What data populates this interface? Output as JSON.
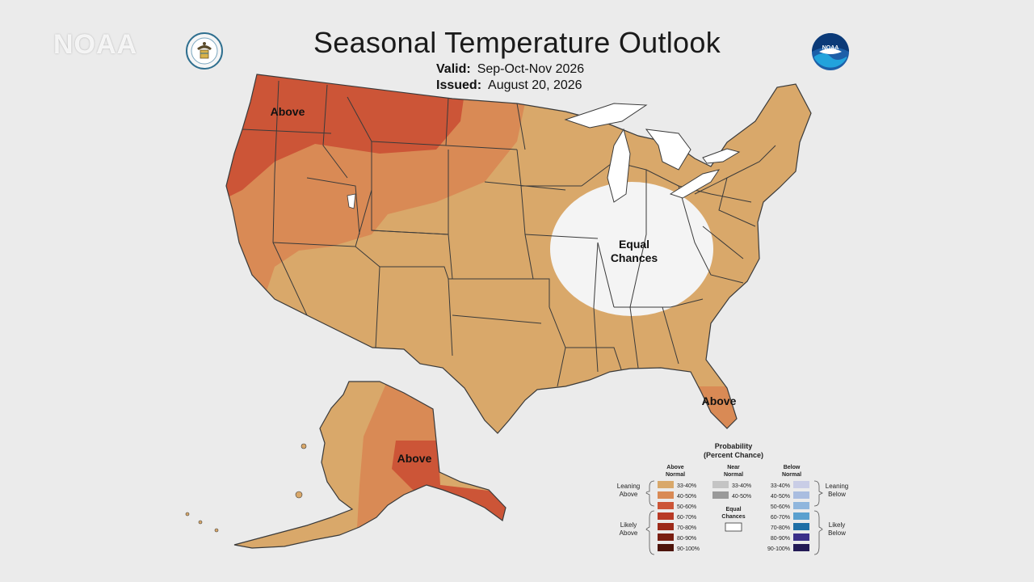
{
  "watermark": "NOAA",
  "title": "Seasonal Temperature Outlook",
  "valid": {
    "label": "Valid:",
    "value": "Sep-Oct-Nov 2026"
  },
  "issued": {
    "label": "Issued:",
    "value": "August 20, 2026"
  },
  "map_labels": {
    "above_northwest": "Above",
    "equal_chances": "Equal Chances",
    "above_florida": "Above",
    "above_alaska": "Above"
  },
  "colors": {
    "background": "#ebebeb",
    "above_33_40": "#d9a86a",
    "above_40_50": "#d98a55",
    "above_50_60": "#cc5537",
    "equal_chances": "#f4f4f4",
    "state_lines": "#3a3a3a"
  },
  "legend": {
    "title": "Probability",
    "subtitle": "(Percent Chance)",
    "above_header": [
      "Above",
      "Normal"
    ],
    "near_header": [
      "Near",
      "Normal"
    ],
    "below_header": [
      "Below",
      "Normal"
    ],
    "leaning_above": [
      "Leaning",
      "Above"
    ],
    "likely_above": [
      "Likely",
      "Above"
    ],
    "leaning_below": [
      "Leaning",
      "Below"
    ],
    "likely_below": [
      "Likely",
      "Below"
    ],
    "equal_chances": [
      "Equal",
      "Chances"
    ],
    "above_bins": [
      {
        "label": "33-40%",
        "color": "#d9a86a"
      },
      {
        "label": "40-50%",
        "color": "#d98a55"
      },
      {
        "label": "50-60%",
        "color": "#cc5537"
      },
      {
        "label": "60-70%",
        "color": "#b83a26"
      },
      {
        "label": "70-80%",
        "color": "#9c2a1a"
      },
      {
        "label": "80-90%",
        "color": "#7a1f12"
      },
      {
        "label": "90-100%",
        "color": "#4d140b"
      }
    ],
    "near_bins": [
      {
        "label": "33-40%",
        "color": "#c4c4c4"
      },
      {
        "label": "40-50%",
        "color": "#9a9a9a"
      }
    ],
    "below_bins": [
      {
        "label": "33-40%",
        "color": "#c9cde6"
      },
      {
        "label": "40-50%",
        "color": "#a9bde0"
      },
      {
        "label": "50-60%",
        "color": "#8fb6dd"
      },
      {
        "label": "60-70%",
        "color": "#5aa0cf"
      },
      {
        "label": "70-80%",
        "color": "#1f6fa6"
      },
      {
        "label": "80-90%",
        "color": "#3b2f8a"
      },
      {
        "label": "90-100%",
        "color": "#231a55"
      }
    ]
  }
}
